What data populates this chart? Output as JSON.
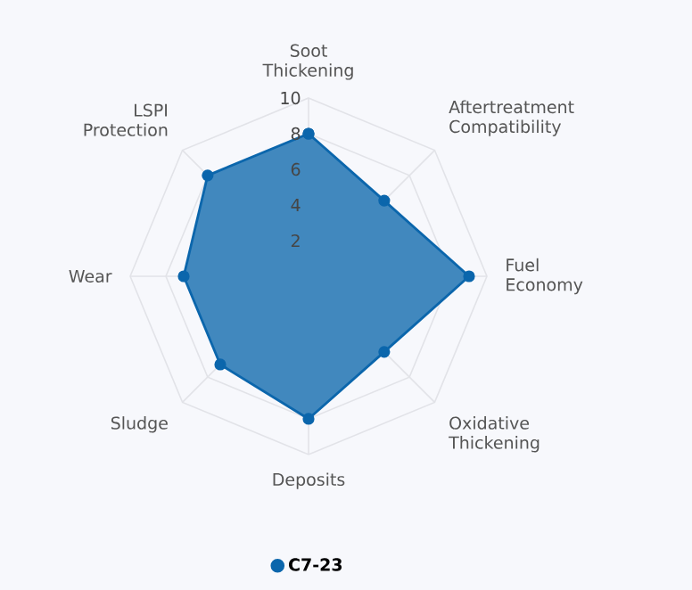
{
  "chart_data": {
    "type": "radar",
    "categories": [
      "Soot Thickening",
      "Aftertreatment Compatibility",
      "Fuel Economy",
      "Oxidative Thickening",
      "Deposits",
      "Sludge",
      "Wear",
      "LSPI Protection"
    ],
    "series": [
      {
        "name": "C7-23",
        "color": "#0b66ac",
        "values": [
          8,
          6,
          9,
          6,
          8,
          7,
          7,
          8
        ]
      }
    ],
    "ylim": [
      0,
      10
    ],
    "yticks": [
      2,
      4,
      6,
      8,
      10
    ],
    "grid": true,
    "legend": "bottom",
    "marker": "circle"
  }
}
